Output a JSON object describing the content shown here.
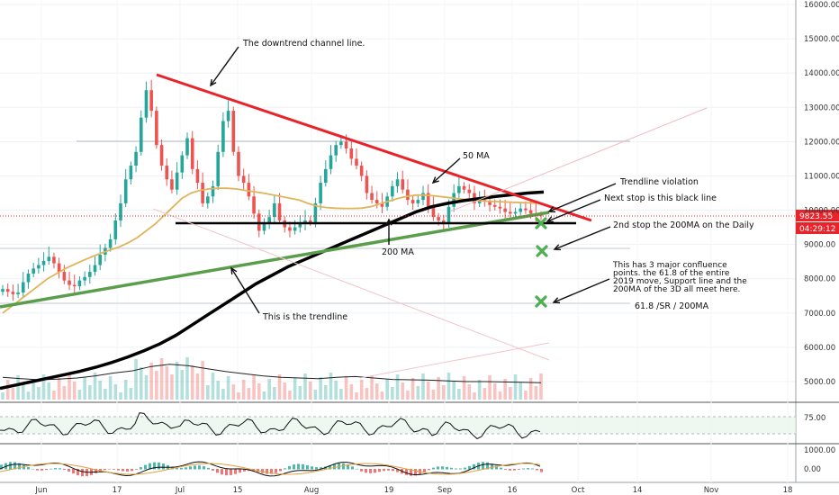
{
  "chart_data": {
    "type": "candlestick",
    "ylim": [
      4200,
      16200
    ],
    "y_ticks": [
      "16000.00",
      "15000.00",
      "14000.00",
      "13000.00",
      "12000.00",
      "11000.00",
      "10000.00",
      "9000.00",
      "8000.00",
      "7000.00",
      "6000.00",
      "5000.00"
    ],
    "x_ticks": [
      "Jun",
      "17",
      "Jul",
      "15",
      "Aug",
      "19",
      "Sep",
      "16",
      "Oct",
      "14",
      "Nov",
      "18"
    ],
    "price_label": "9823.55",
    "countdown_label": "04:29:12",
    "last_price": 9823.55,
    "close_series": [
      7700,
      7620,
      7550,
      7600,
      7900,
      8150,
      8300,
      8400,
      8520,
      8640,
      8450,
      8200,
      7950,
      7820,
      7780,
      7950,
      8050,
      8200,
      8400,
      8700,
      8900,
      9150,
      9700,
      10200,
      10900,
      11300,
      11700,
      12700,
      13500,
      12900,
      11900,
      11300,
      10900,
      10600,
      11100,
      11600,
      12100,
      11200,
      10800,
      10200,
      10400,
      10700,
      11700,
      12600,
      12900,
      11700,
      11000,
      10800,
      10400,
      9900,
      9400,
      9600,
      9800,
      10200,
      9700,
      9500,
      9400,
      9500,
      9600,
      9700,
      9650,
      10200,
      10800,
      11200,
      11600,
      11900,
      12000,
      11800,
      11500,
      11300,
      11000,
      10500,
      10300,
      10200,
      10100,
      10400,
      10700,
      10900,
      10600,
      10300,
      10200,
      10300,
      10500,
      10100,
      9800,
      9700,
      9600,
      10100,
      10500,
      10700,
      10600,
      10500,
      10200,
      10300,
      10250,
      10150,
      10100,
      10050,
      9950,
      9900,
      9950,
      10050,
      10000,
      9900,
      9850,
      9823.55
    ],
    "ma50": [
      7000,
      7200,
      7400,
      7600,
      7800,
      8000,
      8150,
      8300,
      8420,
      8540,
      8650,
      8750,
      8840,
      8930,
      9050,
      9200,
      9400,
      9600,
      9850,
      10100,
      10350,
      10500,
      10580,
      10620,
      10640,
      10640,
      10620,
      10580,
      10540,
      10500,
      10450,
      10400,
      10350,
      10300,
      10200,
      10120,
      10080,
      10060,
      10050,
      10050,
      10060,
      10100,
      10180,
      10260,
      10340,
      10400,
      10440,
      10440,
      10420,
      10390,
      10360,
      10330,
      10300,
      10280,
      10260,
      10250,
      10240,
      10230,
      10220,
      10210,
      10200
    ],
    "ma200": [
      4800,
      4900,
      5000,
      5100,
      5200,
      5300,
      5420,
      5560,
      5720,
      5900,
      6100,
      6350,
      6650,
      6950,
      7250,
      7550,
      7850,
      8100,
      8350,
      8550,
      8750,
      8950,
      9150,
      9350,
      9550,
      9750,
      9950,
      10100,
      10200,
      10280,
      10340,
      10400,
      10450,
      10500,
      10530
    ],
    "volume_ma": [
      0.62,
      0.58,
      0.55,
      0.57,
      0.6,
      0.66,
      0.74,
      0.8,
      0.92,
      0.98,
      0.94,
      0.86,
      0.78,
      0.72,
      0.66,
      0.62,
      0.6,
      0.58,
      0.62,
      0.64,
      0.6,
      0.56,
      0.55,
      0.54,
      0.52,
      0.5,
      0.5,
      0.49,
      0.48,
      0.47
    ],
    "rsi_ticks": [
      "75.00"
    ],
    "macd_ticks": [
      "1000.00",
      "0.00"
    ],
    "annotations": [
      "The downtrend channel line.",
      "50 MA",
      "Trendline violation",
      "Next stop is this black line",
      "2nd stop the 200MA on the Daily",
      "200 MA",
      "This has 3 major confluence points. the 61.8 of the entire 2019 move, Support line and the 200MA of the 3D all meet here.",
      "61.8 /SR / 200MA",
      "This is the trendline"
    ],
    "colors": {
      "up": "#26a69a",
      "down": "#ef5350",
      "downtrend": "#e8232a",
      "trendline": "#5a9e4b",
      "ma200": "#000000",
      "ma50": "#e0b45a",
      "targets": "#4caf50"
    }
  },
  "annotations": {
    "downtrend": "The downtrend channel line.",
    "ma50": "50 MA",
    "violation": "Trendline violation",
    "next_stop": "Next stop is this black line",
    "second_stop": "2nd stop the 200MA on the Daily",
    "ma200": "200 MA",
    "confluence": [
      "This has 3 major confluence",
      "points. the 61.8 of the entire",
      "2019 move, Support line and the",
      "200MA of the 3D all meet here."
    ],
    "fib": "61.8 /SR / 200MA",
    "trendline": "This is the trendline"
  },
  "axis": {
    "price_label": "9823.55",
    "countdown": "04:29:12",
    "rsi_75": "75.00",
    "macd_1000": "1000.00",
    "macd_0": "0.00"
  }
}
